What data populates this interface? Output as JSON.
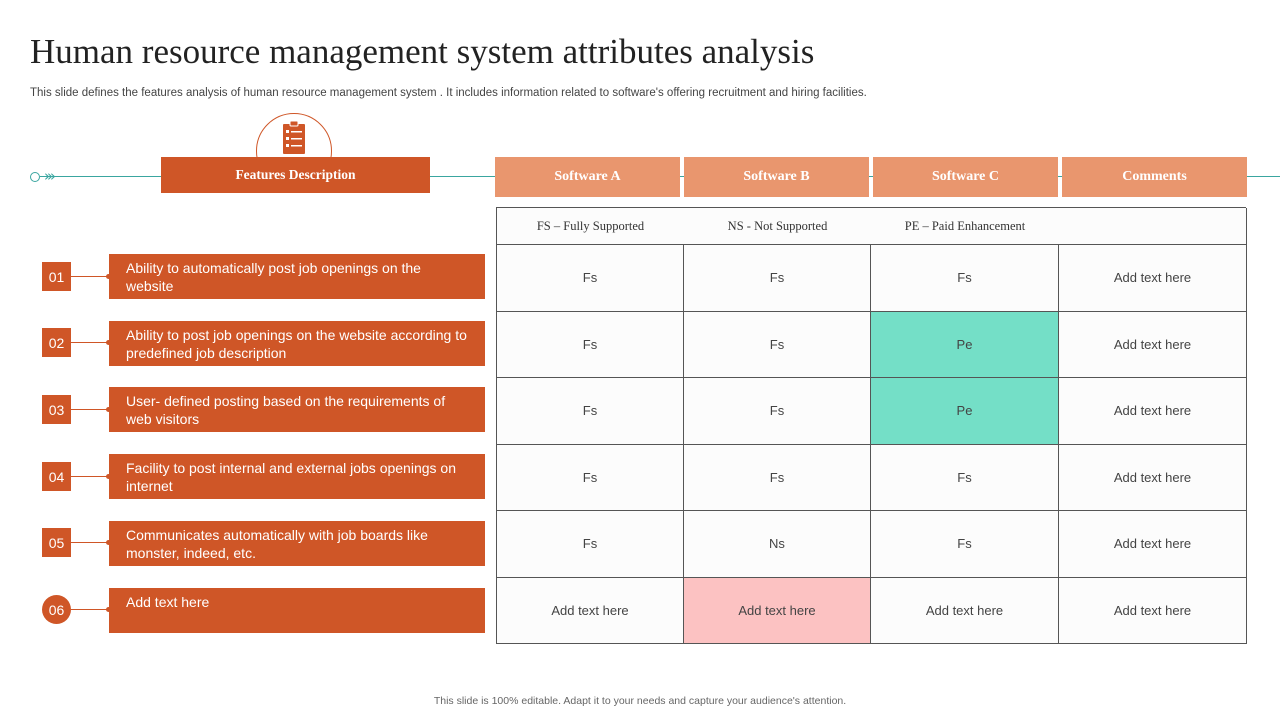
{
  "slide": {
    "title": "Human resource management system attributes analysis",
    "subtitle": "This slide defines the features analysis of human resource management system . It includes information related to software's offering recruitment and hiring facilities.",
    "footer": "This slide is 100% editable. Adapt it to your needs and capture your audience's attention."
  },
  "icons": {
    "header_icon": "clipboard-checklist-icon",
    "timeline_arrows": "triple-chevron-right-icon"
  },
  "features_header": "Features Description",
  "columns": [
    "Software A",
    "Software B",
    "Software C",
    "Comments"
  ],
  "legend": [
    "FS – Fully Supported",
    "NS - Not Supported",
    "PE – Paid Enhancement",
    ""
  ],
  "features": [
    {
      "num": "01",
      "text": "Ability to automatically post job openings on the website"
    },
    {
      "num": "02",
      "text": "Ability to post job openings on the website according to predefined job description"
    },
    {
      "num": "03",
      "text": "User- defined posting  based on the requirements of web visitors"
    },
    {
      "num": "04",
      "text": "Facility to post internal and external jobs openings on internet"
    },
    {
      "num": "05",
      "text": "Communicates automatically with job boards like monster, indeed, etc."
    },
    {
      "num": "06",
      "text": "Add text here"
    }
  ],
  "rows": [
    [
      "Fs",
      "Fs",
      "Fs",
      "Add text here"
    ],
    [
      "Fs",
      "Fs",
      "Pe",
      "Add text here"
    ],
    [
      "Fs",
      "Fs",
      "Pe",
      "Add text here"
    ],
    [
      "Fs",
      "Fs",
      "Fs",
      "Add text here"
    ],
    [
      "Fs",
      "Ns",
      "Fs",
      "Add text here"
    ],
    [
      "Add text here",
      "Add text here",
      "Add text here",
      "Add text here"
    ]
  ],
  "colors": {
    "accent": "#cf5627",
    "header_fill": "#e9966e",
    "timeline": "#3aa6a0",
    "paid_enhancement_fill": "#74dfc7",
    "highlight_pink": "#fcc2c2"
  }
}
